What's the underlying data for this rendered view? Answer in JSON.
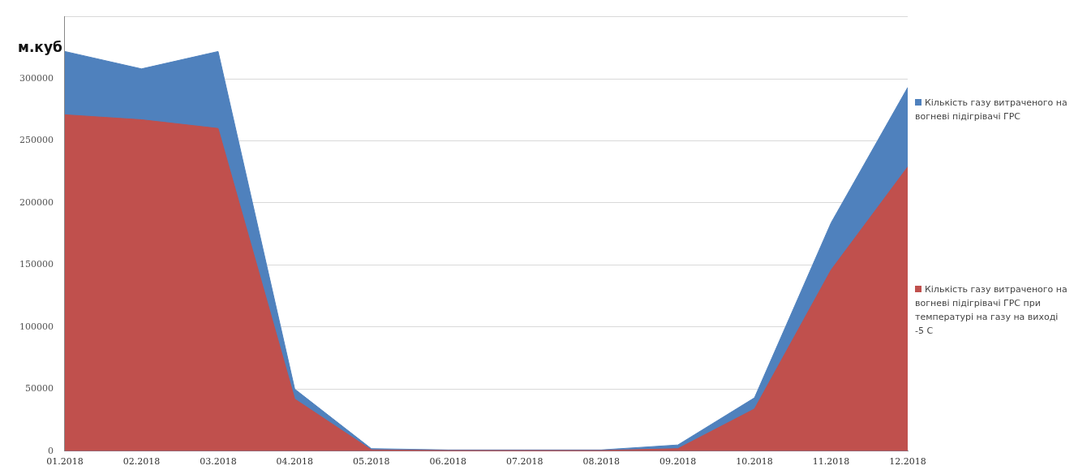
{
  "chart_data": {
    "type": "area",
    "ylabel": "м.куб",
    "categories": [
      "01.2018",
      "02.2018",
      "03.2018",
      "04.2018",
      "05.2018",
      "06.2018",
      "07.2018",
      "08.2018",
      "09.2018",
      "10.2018",
      "11.2018",
      "12.2018"
    ],
    "series": [
      {
        "name": "Кількість газу витраченого на вогневі підігрівачі ГРС",
        "color": "#4f81bd",
        "values": [
          322000,
          308000,
          322000,
          50000,
          2000,
          1000,
          1000,
          1000,
          5000,
          43000,
          184000,
          293000
        ]
      },
      {
        "name": "Кількість газу витраченого на вогневі підігрівачі ГРС при температурі на газу на виході -5 С",
        "color": "#c0504d",
        "values": [
          271000,
          267000,
          260000,
          42000,
          1000,
          500,
          500,
          500,
          2000,
          34000,
          146000,
          229000
        ]
      }
    ],
    "ylim": [
      0,
      350000
    ],
    "yticks": [
      0,
      50000,
      100000,
      150000,
      200000,
      250000,
      300000,
      {
        "value": 350000,
        "label": null
      }
    ],
    "grid": "y",
    "legend": "right"
  }
}
